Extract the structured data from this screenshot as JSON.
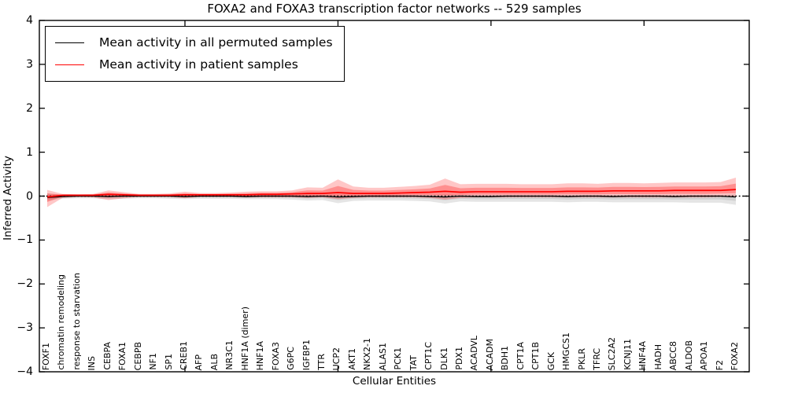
{
  "chart_data": {
    "type": "line",
    "title": "FOXA2 and FOXA3 transcription factor networks -- 529 samples",
    "xlabel": "Cellular Entities",
    "ylabel": "Inferred Activity",
    "ylim": [
      -4,
      4
    ],
    "yticks": [
      4,
      3,
      2,
      1,
      0,
      -1,
      -2,
      -3,
      -4
    ],
    "grid": false,
    "legend_position": "upper left",
    "zero_line": {
      "style": "dotted",
      "color": "#000000",
      "y": 0
    },
    "top_tick_indices": [
      9,
      19,
      29,
      39
    ],
    "categories": [
      "FOXF1",
      "chromatin remodeling",
      "response to starvation",
      "INS",
      "CEBPA",
      "FOXA1",
      "CEBPB",
      "NF1",
      "SP1",
      "CREB1",
      "AFP",
      "ALB",
      "NR3C1",
      "HNF1A (dimer)",
      "HNF1A",
      "FOXA3",
      "G6PC",
      "IGFBP1",
      "TTR",
      "UCP2",
      "AKT1",
      "NKX2-1",
      "ALAS1",
      "PCK1",
      "TAT",
      "CPT1C",
      "DLK1",
      "PDX1",
      "ACADVL",
      "ACADM",
      "BDH1",
      "CPT1A",
      "CPT1B",
      "GCK",
      "HMGCS1",
      "PKLR",
      "TFRC",
      "SLC2A2",
      "KCNJ11",
      "HNF4A",
      "HADH",
      "ABCC8",
      "ALDOB",
      "APOA1",
      "F2",
      "FOXA2"
    ],
    "series": [
      {
        "name": "Mean activity in all permuted samples",
        "color": "#000000",
        "band_fill": "#000000",
        "band_opacity_outer": 0.1,
        "band_opacity_inner": 0.09,
        "line_width": 1.3,
        "values": [
          -0.03,
          -0.01,
          0,
          0,
          -0.01,
          0,
          0,
          0,
          0,
          -0.01,
          0,
          0,
          0,
          -0.01,
          0,
          0,
          0,
          -0.01,
          0,
          -0.02,
          -0.01,
          0,
          0,
          0,
          0,
          -0.01,
          -0.02,
          0,
          -0.01,
          -0.01,
          0,
          0,
          0,
          0,
          -0.01,
          0,
          0,
          -0.01,
          0,
          0,
          0,
          -0.01,
          0,
          0,
          0,
          -0.02
        ],
        "band_hi": [
          0.06,
          0.03,
          0.02,
          0.02,
          0.04,
          0.03,
          0.02,
          0.02,
          0.02,
          0.03,
          0.02,
          0.02,
          0.02,
          0.03,
          0.03,
          0.03,
          0.03,
          0.04,
          0.03,
          0.04,
          0.03,
          0.03,
          0.03,
          0.03,
          0.03,
          0.03,
          0.04,
          0.03,
          0.03,
          0.03,
          0.03,
          0.03,
          0.03,
          0.03,
          0.03,
          0.03,
          0.03,
          0.03,
          0.03,
          0.03,
          0.03,
          0.03,
          0.03,
          0.03,
          0.03,
          0.04
        ],
        "band_lo": [
          -0.1,
          -0.06,
          -0.05,
          -0.05,
          -0.07,
          -0.06,
          -0.05,
          -0.05,
          -0.06,
          -0.07,
          -0.06,
          -0.06,
          -0.06,
          -0.07,
          -0.07,
          -0.07,
          -0.08,
          -0.1,
          -0.09,
          -0.16,
          -0.11,
          -0.1,
          -0.1,
          -0.1,
          -0.11,
          -0.12,
          -0.17,
          -0.12,
          -0.13,
          -0.13,
          -0.13,
          -0.13,
          -0.13,
          -0.13,
          -0.14,
          -0.13,
          -0.13,
          -0.14,
          -0.14,
          -0.14,
          -0.14,
          -0.14,
          -0.15,
          -0.15,
          -0.15,
          -0.2
        ]
      },
      {
        "name": "Mean activity in patient samples",
        "color": "#ff0000",
        "band_fill": "#ff0000",
        "band_opacity_outer": 0.22,
        "band_opacity_inner": 0.28,
        "line_width": 1.7,
        "values": [
          -0.02,
          0.02,
          0.02,
          0.02,
          0.04,
          0.03,
          0.02,
          0.02,
          0.02,
          0.03,
          0.03,
          0.03,
          0.03,
          0.03,
          0.04,
          0.04,
          0.05,
          0.06,
          0.06,
          0.08,
          0.06,
          0.06,
          0.06,
          0.07,
          0.08,
          0.09,
          0.11,
          0.09,
          0.1,
          0.1,
          0.1,
          0.1,
          0.1,
          0.1,
          0.11,
          0.11,
          0.11,
          0.12,
          0.12,
          0.12,
          0.12,
          0.13,
          0.13,
          0.13,
          0.13,
          0.15
        ],
        "band_hi": [
          0.14,
          0.05,
          0.04,
          0.05,
          0.13,
          0.09,
          0.05,
          0.05,
          0.06,
          0.1,
          0.07,
          0.07,
          0.08,
          0.1,
          0.11,
          0.11,
          0.13,
          0.2,
          0.19,
          0.38,
          0.22,
          0.19,
          0.19,
          0.21,
          0.23,
          0.26,
          0.4,
          0.27,
          0.28,
          0.28,
          0.28,
          0.27,
          0.27,
          0.27,
          0.29,
          0.29,
          0.28,
          0.3,
          0.3,
          0.29,
          0.3,
          0.31,
          0.31,
          0.31,
          0.32,
          0.42
        ],
        "band_lo": [
          -0.25,
          -0.04,
          -0.02,
          -0.03,
          -0.09,
          -0.05,
          -0.02,
          -0.02,
          -0.02,
          -0.05,
          -0.02,
          -0.02,
          -0.02,
          -0.03,
          -0.03,
          -0.03,
          -0.03,
          -0.04,
          -0.03,
          -0.07,
          -0.04,
          -0.03,
          -0.03,
          -0.03,
          -0.03,
          -0.04,
          -0.08,
          -0.04,
          -0.03,
          -0.03,
          -0.03,
          -0.03,
          -0.03,
          -0.03,
          -0.03,
          -0.03,
          -0.03,
          -0.03,
          -0.03,
          -0.03,
          -0.03,
          -0.03,
          -0.03,
          -0.03,
          -0.02,
          -0.02
        ]
      }
    ]
  }
}
